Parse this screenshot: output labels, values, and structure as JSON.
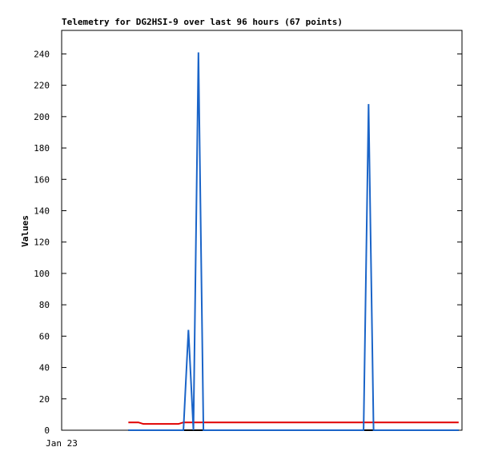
{
  "chart_data": {
    "type": "line",
    "title": "Telemetry for DG2HSI-9 over last 96 hours (67 points)",
    "y_label": "Values",
    "x": [
      16,
      17.2,
      18.4,
      19.6,
      20.8,
      22,
      23.2,
      24.4,
      25.6,
      26.8,
      28,
      29.2,
      30.4,
      31.6,
      32.8,
      34,
      35.2,
      36.4,
      37.6,
      38.8,
      40,
      41.2,
      42.4,
      43.6,
      44.8,
      46,
      47.2,
      48.4,
      49.6,
      50.8,
      52,
      53.2,
      54.4,
      55.6,
      56.8,
      58,
      59.2,
      60.4,
      61.6,
      62.8,
      64,
      65.2,
      66.4,
      67.6,
      68.8,
      70,
      71.2,
      72.4,
      73.6,
      74.8,
      76,
      77.2,
      78.4,
      79.6,
      80.8,
      82,
      83.2,
      84.4,
      85.6,
      86.8,
      88,
      89.2,
      90.4,
      91.6,
      92.8,
      94,
      95.2
    ],
    "series": [
      {
        "color": "#000000",
        "values": [
          0,
          0,
          0,
          0,
          0,
          0,
          0,
          0,
          0,
          0,
          0,
          0,
          0,
          0,
          0,
          0,
          0,
          0,
          0,
          0,
          0,
          0,
          0,
          0,
          0,
          0,
          0,
          0,
          0,
          0,
          0,
          0,
          0,
          0,
          0,
          0,
          0,
          0,
          0,
          0,
          0,
          0,
          0,
          0,
          0,
          0,
          0,
          0,
          0,
          0,
          0,
          0,
          0,
          0,
          0,
          0,
          0,
          0,
          0,
          0,
          0,
          0,
          0,
          0,
          0,
          0,
          0
        ]
      },
      {
        "color": "#e00000",
        "values": [
          5,
          5,
          5,
          4,
          4,
          4,
          4,
          4,
          4,
          4,
          4,
          5,
          5,
          5,
          5,
          5,
          5,
          5,
          5,
          5,
          5,
          5,
          5,
          5,
          5,
          5,
          5,
          5,
          5,
          5,
          5,
          5,
          5,
          5,
          5,
          5,
          5,
          5,
          5,
          5,
          5,
          5,
          5,
          5,
          5,
          5,
          5,
          5,
          5,
          5,
          5,
          5,
          5,
          5,
          5,
          5,
          5,
          5,
          5,
          5,
          5,
          5,
          5,
          5,
          5,
          5,
          5
        ]
      },
      {
        "color": "#1a64c8",
        "values": [
          0,
          0,
          0,
          0,
          0,
          0,
          0,
          0,
          0,
          0,
          0,
          0,
          64,
          0,
          241,
          0,
          0,
          0,
          0,
          0,
          0,
          0,
          0,
          0,
          0,
          0,
          0,
          0,
          0,
          0,
          0,
          0,
          0,
          0,
          0,
          0,
          0,
          0,
          0,
          0,
          0,
          0,
          0,
          0,
          0,
          0,
          0,
          0,
          208,
          0,
          0,
          0,
          0,
          0,
          0,
          0,
          0,
          0,
          0,
          0,
          0,
          0,
          0,
          0,
          0,
          0,
          0
        ]
      }
    ],
    "xlim": [
      0,
      96
    ],
    "xticks": [
      {
        "value": 0,
        "label": "Jan 23"
      }
    ],
    "ylim": [
      0,
      255
    ],
    "yticks": [
      0,
      20,
      40,
      60,
      80,
      100,
      120,
      140,
      160,
      180,
      200,
      220,
      240
    ]
  }
}
